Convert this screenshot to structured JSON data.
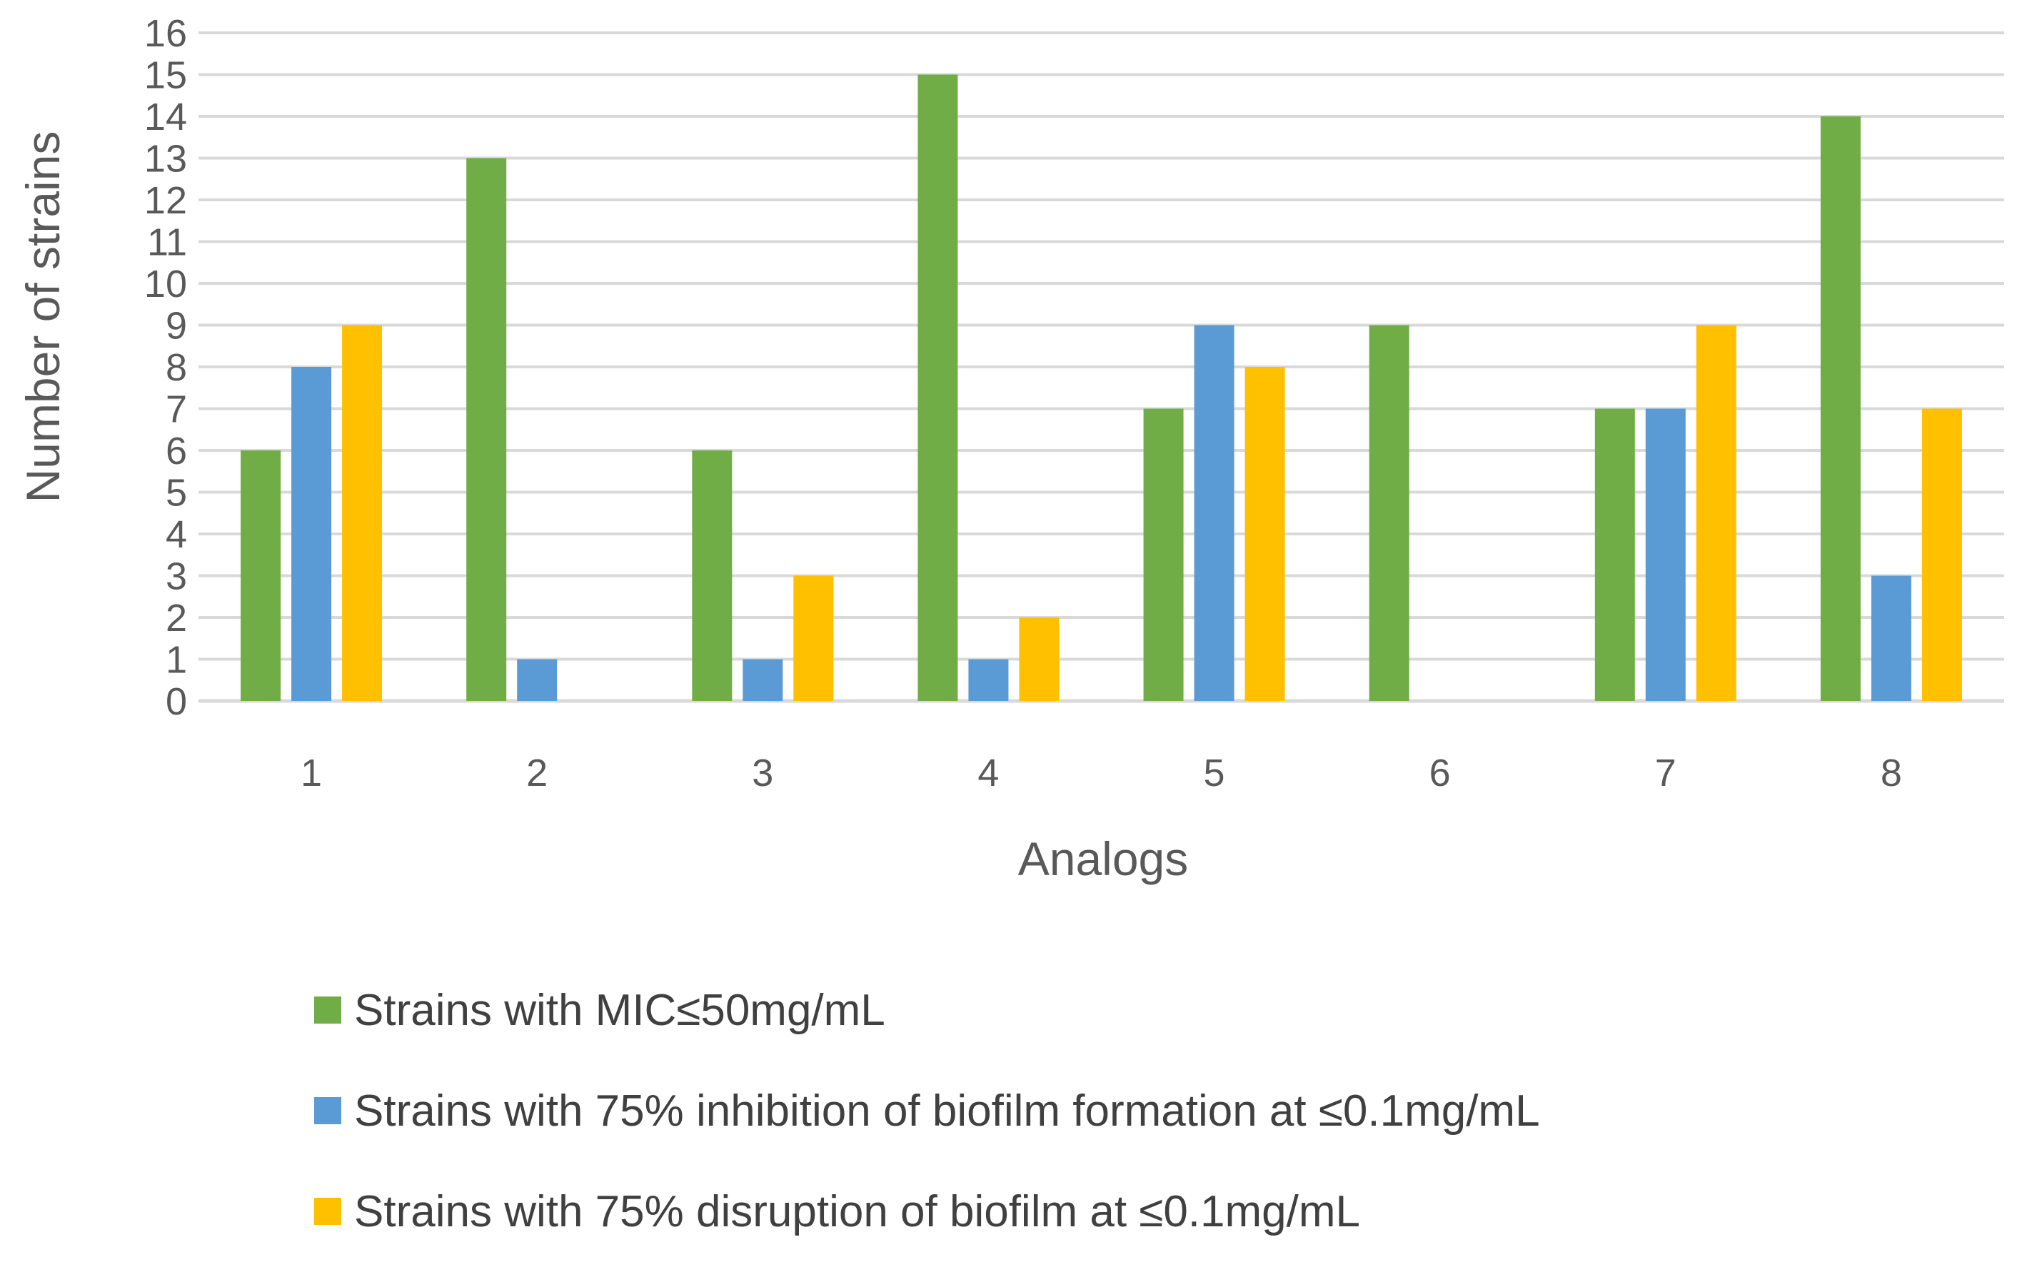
{
  "chart_data": {
    "type": "bar",
    "title": "",
    "xlabel": "Analogs",
    "ylabel": "Number of strains",
    "categories": [
      "1",
      "2",
      "3",
      "4",
      "5",
      "6",
      "7",
      "8"
    ],
    "ylim": [
      0,
      16
    ],
    "yticks": [
      "0",
      "1",
      "2",
      "3",
      "4",
      "5",
      "6",
      "7",
      "8",
      "9",
      "10",
      "11",
      "12",
      "13",
      "14",
      "15",
      "16"
    ],
    "grid": true,
    "legend_position": "bottom",
    "series": [
      {
        "name": "Strains with MIC≤50mg/mL",
        "color": "#70AD47",
        "values": [
          6,
          13,
          6,
          15,
          7,
          9,
          7,
          14
        ]
      },
      {
        "name": "Strains with 75% inhibition of biofilm formation at ≤0.1mg/mL",
        "color": "#5B9BD5",
        "values": [
          8,
          1,
          1,
          1,
          9,
          0,
          7,
          3
        ]
      },
      {
        "name": "Strains with 75% disruption of biofilm at ≤0.1mg/mL",
        "color": "#FFC000",
        "values": [
          9,
          0,
          3,
          2,
          8,
          0,
          9,
          7
        ]
      }
    ]
  }
}
